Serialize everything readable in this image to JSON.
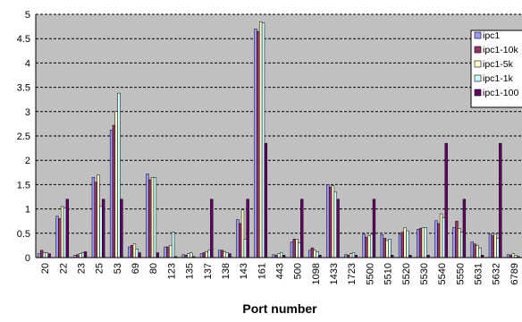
{
  "chart_data": {
    "type": "bar",
    "title": "",
    "xlabel": "Port number",
    "ylabel": "",
    "ylim": [
      0,
      5
    ],
    "yticks": [
      "0",
      "0.5",
      "1",
      "1.5",
      "2",
      "2.5",
      "3",
      "3.5",
      "4",
      "4.5",
      "5"
    ],
    "grid": true,
    "legend_position": "right",
    "categories": [
      "20",
      "22",
      "23",
      "25",
      "53",
      "69",
      "80",
      "123",
      "135",
      "137",
      "138",
      "143",
      "161",
      "443",
      "500",
      "1098",
      "1433",
      "1723",
      "5500",
      "5510",
      "5520",
      "5530",
      "5540",
      "5550",
      "5631",
      "5632",
      "6789"
    ],
    "series": [
      {
        "name": "ipc1",
        "color": "#9999ff",
        "values": [
          0.08,
          0.85,
          0.05,
          1.65,
          2.62,
          0.22,
          1.72,
          0.22,
          0.06,
          0.08,
          0.15,
          0.78,
          4.7,
          0.06,
          0.32,
          0.15,
          1.5,
          0.06,
          0.48,
          0.47,
          0.48,
          0.58,
          0.76,
          0.62,
          0.32,
          0.48,
          0.06
        ]
      },
      {
        "name": "ipc1-10k",
        "color": "#993366",
        "values": [
          0.15,
          0.8,
          0.06,
          1.55,
          2.72,
          0.25,
          1.6,
          0.22,
          0.05,
          0.1,
          0.15,
          0.7,
          4.65,
          0.05,
          0.38,
          0.2,
          1.45,
          0.05,
          0.42,
          0.4,
          0.52,
          0.6,
          0.7,
          0.75,
          0.28,
          0.45,
          0.05
        ]
      },
      {
        "name": "ipc1-5k",
        "color": "#ffffcc",
        "values": [
          0.1,
          1.05,
          0.08,
          1.7,
          3.0,
          0.28,
          1.65,
          0.25,
          0.08,
          0.12,
          0.12,
          0.98,
          4.85,
          0.08,
          0.38,
          0.15,
          1.48,
          0.08,
          0.45,
          0.35,
          0.62,
          0.62,
          0.9,
          0.6,
          0.25,
          0.48,
          0.08
        ]
      },
      {
        "name": "ipc1-1k",
        "color": "#ccffff",
        "values": [
          0.1,
          1.02,
          0.1,
          1.05,
          3.38,
          0.18,
          1.65,
          0.52,
          0.1,
          0.15,
          0.1,
          0.38,
          4.83,
          0.1,
          0.3,
          0.12,
          1.35,
          0.1,
          0.48,
          0.38,
          0.55,
          0.62,
          0.82,
          0.52,
          0.2,
          0.4,
          0.05
        ]
      },
      {
        "name": "ipc1-100",
        "color": "#660066",
        "values": [
          0.08,
          1.2,
          0.12,
          1.2,
          1.2,
          0.1,
          0.1,
          0.02,
          0.02,
          1.2,
          0.08,
          1.2,
          2.35,
          0.05,
          1.2,
          0.05,
          1.2,
          0.05,
          1.2,
          0.05,
          0.05,
          0.05,
          2.35,
          1.2,
          0.05,
          2.35,
          0.02
        ]
      }
    ]
  }
}
